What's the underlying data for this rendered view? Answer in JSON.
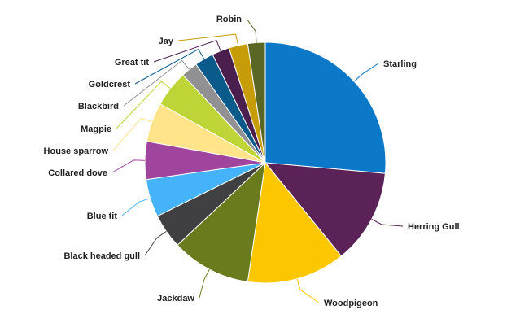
{
  "chart_data": {
    "type": "pie",
    "slices": [
      {
        "label": "Starling",
        "value": 26.0,
        "color": "#0B78C8"
      },
      {
        "label": "Herring Gull",
        "value": 12.5,
        "color": "#5A2257"
      },
      {
        "label": "Woodpigeon",
        "value": 13.0,
        "color": "#FDC700"
      },
      {
        "label": "Jackdaw",
        "value": 10.5,
        "color": "#6A7B1E"
      },
      {
        "label": "Black headed gull",
        "value": 4.6,
        "color": "#404042"
      },
      {
        "label": "Blue tit",
        "value": 5.0,
        "color": "#45B3FA"
      },
      {
        "label": "Collared dove",
        "value": 5.0,
        "color": "#A0459E"
      },
      {
        "label": "House sparrow",
        "value": 5.2,
        "color": "#FFE48A"
      },
      {
        "label": "Magpie",
        "value": 4.8,
        "color": "#BFD436"
      },
      {
        "label": "Blackbird",
        "value": 2.2,
        "color": "#919194"
      },
      {
        "label": "Goldcrest",
        "value": 2.5,
        "color": "#0A5A8C"
      },
      {
        "label": "Great tit",
        "value": 2.3,
        "color": "#4A1E4D"
      },
      {
        "label": "Jay",
        "value": 2.5,
        "color": "#C69D08"
      },
      {
        "label": "Robin",
        "value": 2.3,
        "color": "#5A6624"
      }
    ]
  }
}
